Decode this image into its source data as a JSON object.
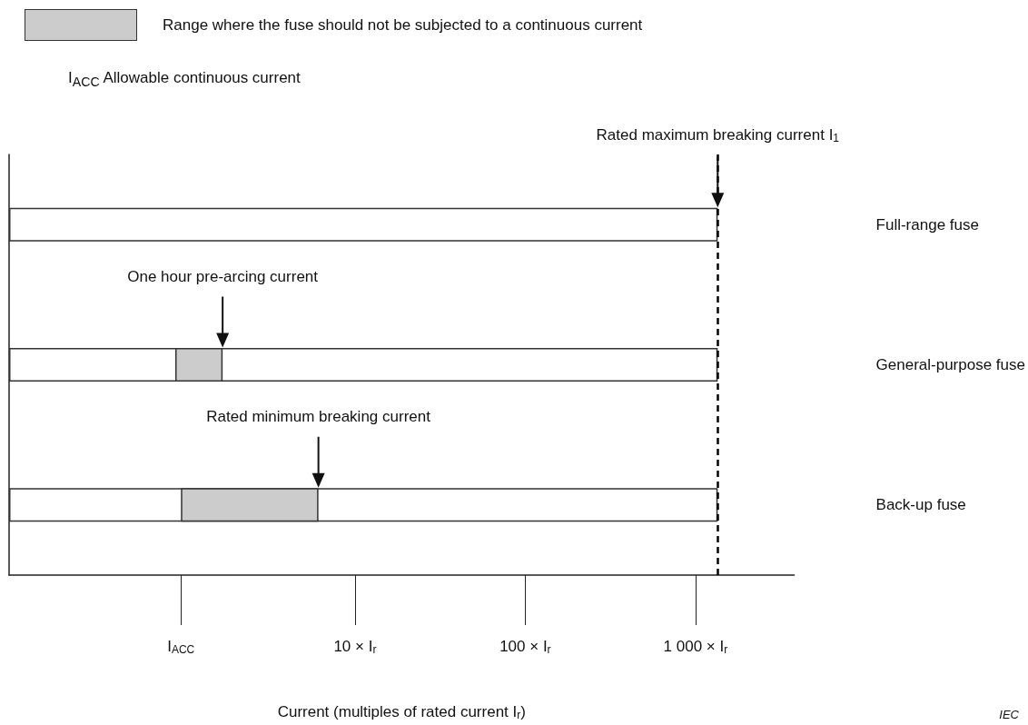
{
  "chart_data": {
    "type": "bar",
    "orientation": "horizontal",
    "xlabel": "Current (multiples of rated current I$_{r}$)",
    "categories": [
      "Full-range fuse",
      "General-purpose fuse",
      "Back-up fuse"
    ],
    "series": [
      {
        "color": "#ffffff",
        "base": [
          0.093,
          0.093,
          0.093
        ],
        "values": [
          1350,
          1350,
          1350
        ]
      },
      {
        "name": "Range where the fuse should not be subjected to a continuous current",
        "color": "#cccccc",
        "base": [
          null,
          0.88,
          0.95
        ],
        "values": [
          null,
          0.79,
          5.15
        ]
      }
    ],
    "log": "x",
    "xlim": [
      0.093,
      3800
    ],
    "xticks": [
      {
        "value": 0.95,
        "label": "I$_{ACC}$"
      },
      {
        "value": 10,
        "label": "10 × I$_{r}$"
      },
      {
        "value": 100,
        "label": "100 × I$_{r}$"
      },
      {
        "value": 1000,
        "label": "1 000 × I$_{r}$"
      }
    ],
    "ref_lines": [
      {
        "axis": "x",
        "value": 1350,
        "color": "#000000",
        "line_style": "dashed"
      }
    ],
    "annotations": [
      "I$_{ACC}$   Allowable continuous current",
      "Rated maximum breaking current I$_{1}$",
      "One hour pre-arcing current",
      "Rated minimum breaking current",
      "IEC"
    ],
    "legend": "top left",
    "grid": false
  }
}
